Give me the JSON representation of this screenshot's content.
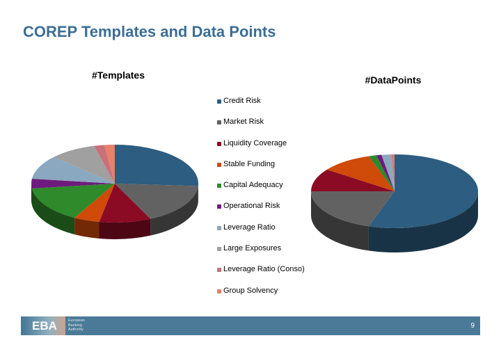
{
  "title": "COREP Templates and Data Points",
  "legend": [
    "Credit Risk",
    "Market Risk",
    "Liquidity Coverage",
    "Stable Funding",
    "Capital Adequacy",
    "Operational Risk",
    "Leverage Ratio",
    "Large Exposures",
    "Leverage Ratio (Conso)",
    "Group Solvency"
  ],
  "colors": [
    "#2d5d80",
    "#626262",
    "#8b0a24",
    "#d04a0a",
    "#2e8a2a",
    "#6e1a7e",
    "#8aa8bf",
    "#a0a0a0",
    "#c9707a",
    "#e8806a"
  ],
  "chart_data": [
    {
      "type": "pie",
      "title": "#Templates",
      "categories": [
        "Credit Risk",
        "Market Risk",
        "Liquidity Coverage",
        "Stable Funding",
        "Capital Adequacy",
        "Operational Risk",
        "Leverage Ratio",
        "Large Exposures",
        "Leverage Ratio (Conso)",
        "Group Solvency"
      ],
      "values": [
        26,
        17,
        10,
        5,
        15,
        4,
        10,
        9,
        2,
        2
      ],
      "legend": "right"
    },
    {
      "type": "pie",
      "title": "#DataPoints",
      "categories": [
        "Credit Risk",
        "Market Risk",
        "Liquidity Coverage",
        "Stable Funding",
        "Capital Adequacy",
        "Operational Risk",
        "Leverage Ratio",
        "Large Exposures",
        "Leverage Ratio (Conso)",
        "Group Solvency"
      ],
      "values": [
        55,
        20,
        10,
        10,
        1.5,
        1,
        1.5,
        0.5,
        0.3,
        0.2
      ],
      "legend": "none"
    }
  ],
  "footer": {
    "logo": "EBA",
    "org": "European Banking Authority",
    "page": "9"
  }
}
